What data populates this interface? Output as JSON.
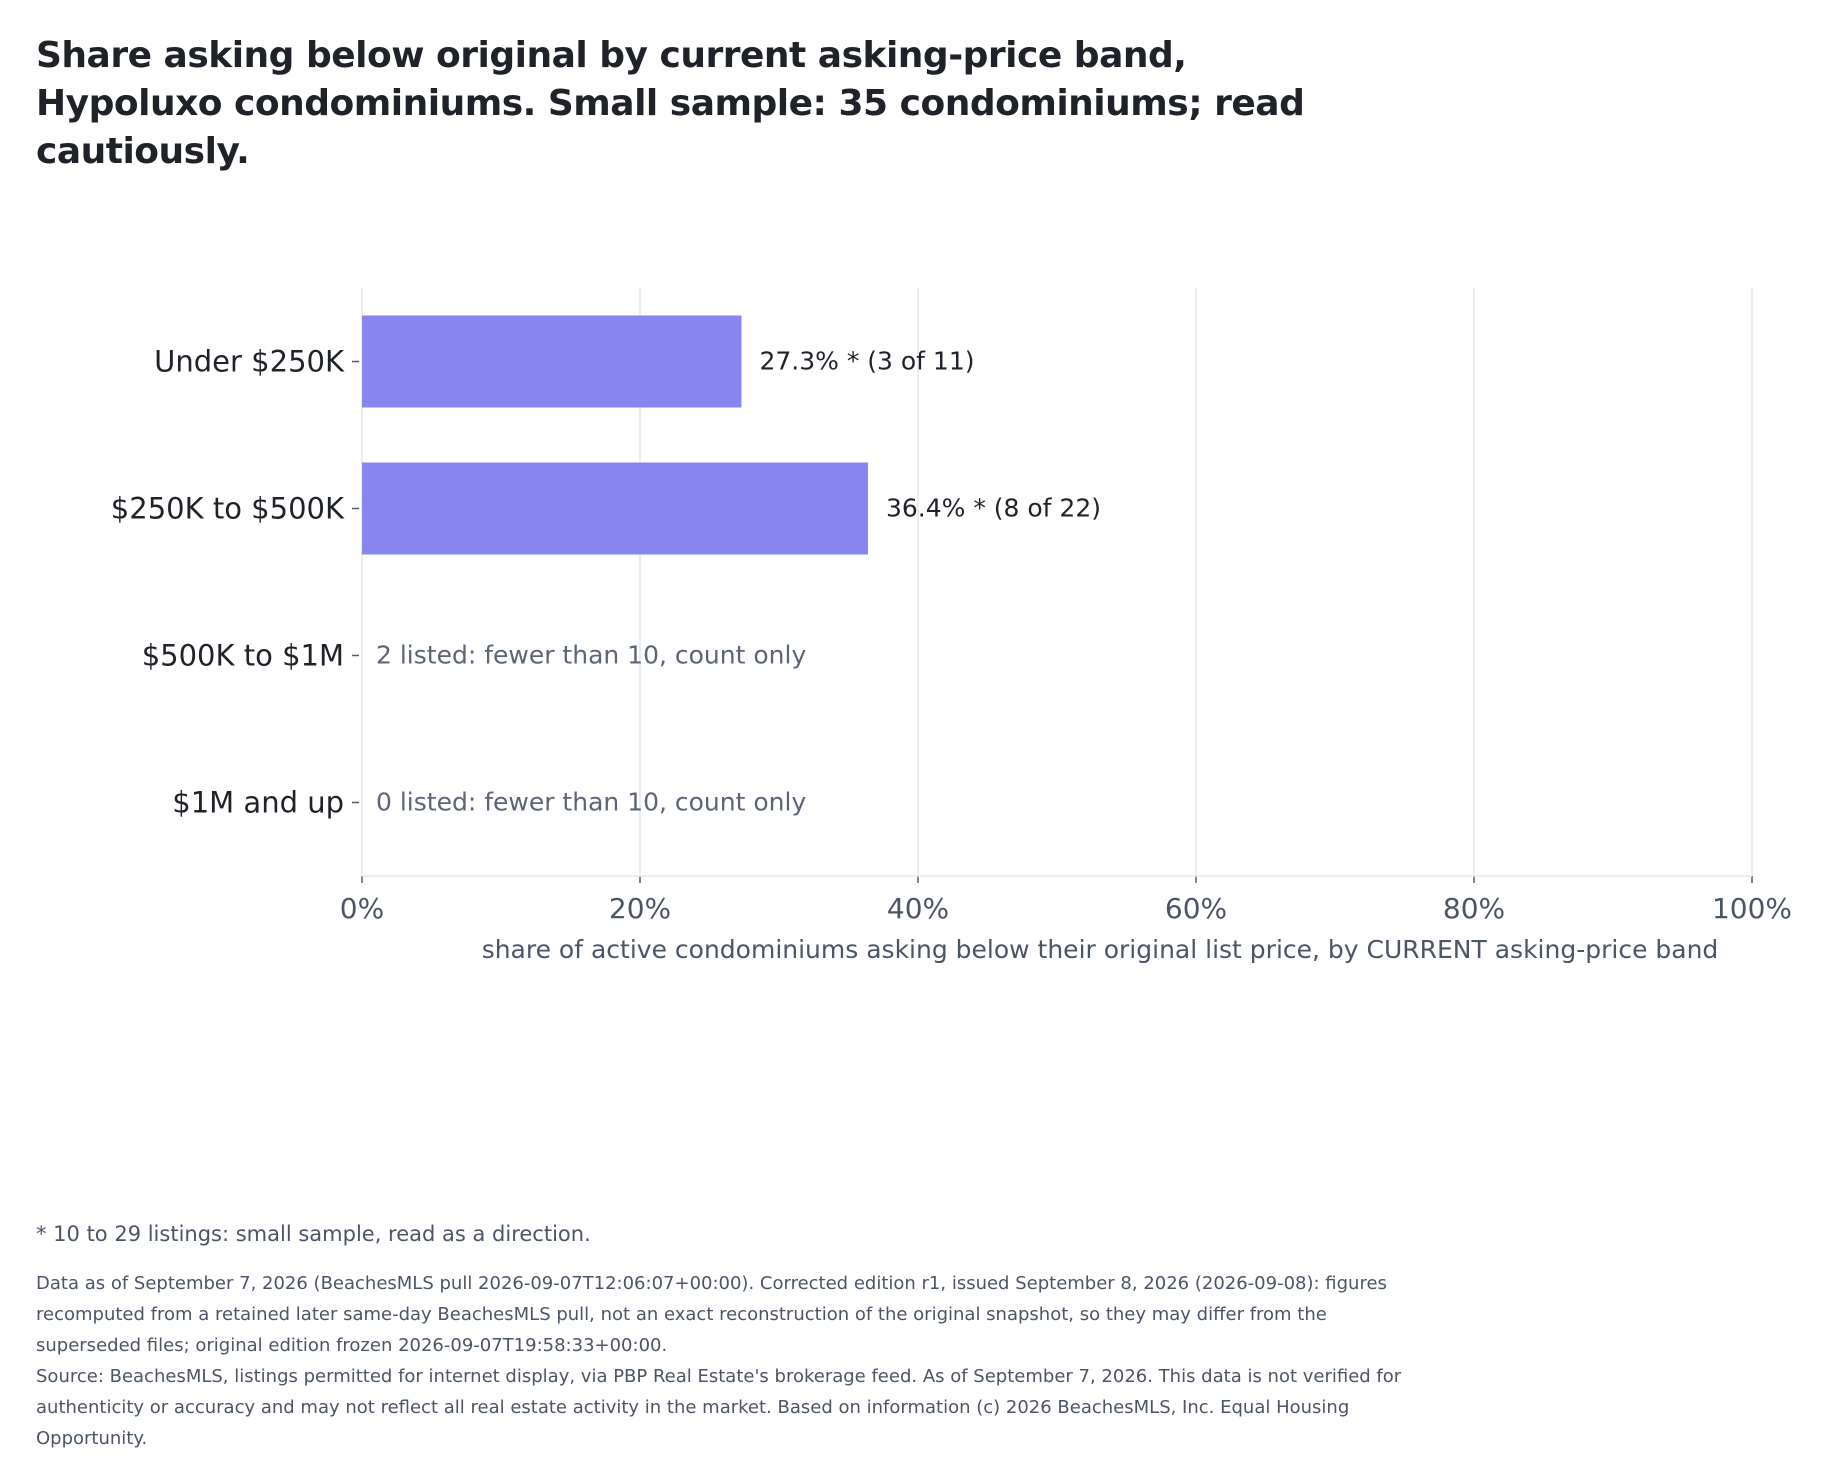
{
  "chart_data": {
    "type": "bar",
    "orientation": "horizontal",
    "title": "Share asking below original by current asking-price band, Hypoluxo condominiums. Small sample: 35 condominiums; read cautiously.",
    "categories": [
      "Under $250K",
      "$250K to $500K",
      "$500K to $1M",
      "$1M and up"
    ],
    "values": [
      27.3,
      36.4,
      null,
      null
    ],
    "data_labels": [
      "27.3% *  (3 of 11)",
      "36.4% *  (8 of 22)",
      "2 listed: fewer than 10, count only",
      "0 listed: fewer than 10, count only"
    ],
    "xlabel": "share of active condominiums asking below their original list price, by CURRENT asking-price band",
    "ylabel": "",
    "xlim": [
      0,
      100
    ],
    "xticks": [
      0,
      20,
      40,
      60,
      80,
      100
    ],
    "xtick_labels": [
      "0%",
      "20%",
      "40%",
      "60%",
      "80%",
      "100%"
    ],
    "grid": "vertical",
    "bar_color": "#8985ef"
  },
  "footnote": "* 10 to 29 listings: small sample, read as a direction.",
  "notes": [
    "Data as of September 7, 2026 (BeachesMLS pull 2026-09-07T12:06:07+00:00). Corrected edition r1, issued September 8, 2026 (2026-09-08): figures recomputed from a retained later same-day BeachesMLS pull, not an exact reconstruction of the original snapshot, so they may differ from the superseded files; original edition frozen 2026-09-07T19:58:33+00:00.",
    "Source: BeachesMLS, listings permitted for internet display, via PBP Real Estate's brokerage feed. As of September 7, 2026. This data is not verified for authenticity or accuracy and may not reflect all real estate activity in the market. Based on information (c) 2026 BeachesMLS, Inc. Equal Housing Opportunity."
  ]
}
